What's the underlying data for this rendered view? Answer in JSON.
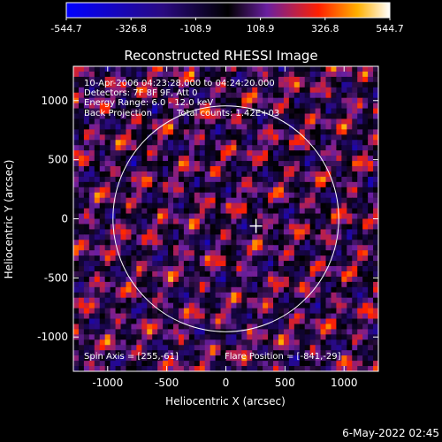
{
  "colorbar": {
    "min": -544.7,
    "max": 544.7,
    "tick_labels": [
      "-544.7",
      "-326.8",
      "-108.9",
      "108.9",
      "326.8",
      "544.7"
    ],
    "colors": [
      "#0000ff",
      "#2a0a80",
      "#000000",
      "#6a1fa0",
      "#ff2000",
      "#ffb000",
      "#ffffff"
    ]
  },
  "chart_data": {
    "type": "heatmap",
    "title": "Reconstructed RHESSI Image",
    "xlabel": "Heliocentric X (arcsec)",
    "ylabel": "Heliocentric Y (arcsec)",
    "xlim": [
      -1290,
      1290
    ],
    "ylim": [
      -1290,
      1290
    ],
    "x_ticks": [
      "-1000",
      "-500",
      "0",
      "500",
      "1000"
    ],
    "y_ticks": [
      "-1000",
      "-500",
      "0",
      "500",
      "1000"
    ],
    "x_tick_values": [
      -1000,
      -500,
      0,
      500,
      1000
    ],
    "y_tick_values": [
      -1000,
      -500,
      0,
      500,
      1000
    ],
    "solar_limb_radius_arcsec": 955,
    "marker_position": [
      255,
      -61
    ],
    "annotations": {
      "time_range": "10-Apr-2006 04:23:28.000 to 04:24:20.000",
      "detectors": "Detectors: 7F 8F 9F, Att 0",
      "energy": "Energy Range: 6.0 - 12.0 keV",
      "method": "Back Projection",
      "counts": "Total counts: 1.42E+03",
      "spin_axis": "Spin Axis = [255,-61]",
      "flare_position": "Flare Position = [-841,-29]"
    }
  },
  "footer": {
    "date": "6-May-2022 02:45"
  }
}
